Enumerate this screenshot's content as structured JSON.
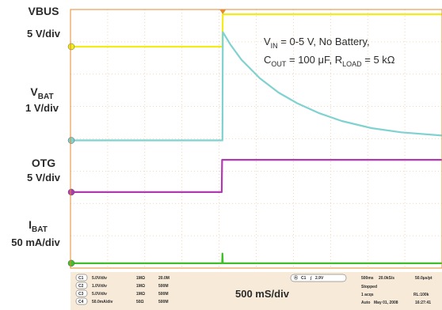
{
  "colors": {
    "background": "#ffffff",
    "screen": "#ffffff",
    "grid": "#f4c9a6",
    "frame": "#e58a2e",
    "ch1": "#f2ec1b",
    "ch2": "#7fd2d0",
    "ch3": "#b03ab0",
    "ch4": "#3fbf2a",
    "status_bg": "#f7ead9"
  },
  "channel_labels": {
    "vbus": {
      "name": "VBUS",
      "scale": "5 V/div"
    },
    "vbat": {
      "name": "V",
      "sub": "BAT",
      "scale": "1 V/div"
    },
    "otg": {
      "name": "OTG",
      "scale": "5 V/div"
    },
    "ibat": {
      "name": "I",
      "sub": "BAT",
      "scale": "50 mA/div"
    }
  },
  "annotation": {
    "line1_a": "V",
    "line1_sub": "IN",
    "line1_b": " = 0-5 V, No Battery,",
    "line2_a": "C",
    "line2_sub1": "OUT",
    "line2_b": " = 100 ",
    "line2_mu": "μF, R",
    "line2_sub2": "LOAD",
    "line2_c": " = 5 kΩ"
  },
  "timebase_label": "500 mS/div",
  "status": {
    "channels": [
      {
        "tag": "C1",
        "scale": "5.0V/div",
        "coupling": "1MΩ",
        "bw": "20.0M"
      },
      {
        "tag": "C2",
        "scale": "1.0V/div",
        "coupling": "1MΩ",
        "bw": "500M"
      },
      {
        "tag": "C3",
        "scale": "5.0V/div",
        "coupling": "1MΩ",
        "bw": "500M"
      },
      {
        "tag": "C4",
        "scale": "50.0mA/div",
        "coupling": "50Ω",
        "bw": "500M"
      }
    ],
    "trigger": {
      "source": "C1",
      "level": "2.9V"
    },
    "acq": {
      "timebase": "500ms",
      "rate": "20.0kS/s",
      "res": "50.0µs/pt",
      "state": "Stopped",
      "acqs": "1 acqs",
      "rl": "RL:100k",
      "mode": "Auto",
      "date": "May 01, 2008",
      "time": "16:27:41"
    }
  },
  "chart_data": {
    "type": "line",
    "x_unit": "ms",
    "x_div": 500,
    "x_divisions": 10,
    "y_divisions": 8,
    "grid": true,
    "trigger_time_ms": 0,
    "x_range_ms": [
      -2050,
      2950
    ],
    "series": [
      {
        "name": "VBUS",
        "channel": "CH1",
        "unit": "V",
        "scale_per_div": 5,
        "x": [
          -2050,
          -5,
          0,
          2950
        ],
        "y": [
          0,
          0,
          5,
          5
        ]
      },
      {
        "name": "VBAT",
        "channel": "CH2",
        "unit": "V",
        "scale_per_div": 1,
        "x": [
          -2050,
          -5,
          0,
          100,
          250,
          500,
          750,
          1000,
          1300,
          1600,
          2000,
          2400,
          2950
        ],
        "y": [
          0,
          0,
          3.35,
          2.97,
          2.5,
          1.92,
          1.48,
          1.15,
          0.84,
          0.6,
          0.38,
          0.25,
          0.15
        ]
      },
      {
        "name": "OTG",
        "channel": "CH3",
        "unit": "V",
        "scale_per_div": 5,
        "x": [
          -2050,
          -15,
          -10,
          2950
        ],
        "y": [
          0,
          0,
          5,
          5
        ]
      },
      {
        "name": "IBAT",
        "channel": "CH4",
        "unit": "mA",
        "scale_per_div": 50,
        "x": [
          -2050,
          -10,
          -5,
          0,
          2950
        ],
        "y": [
          0,
          0,
          15,
          0,
          0
        ]
      }
    ]
  }
}
